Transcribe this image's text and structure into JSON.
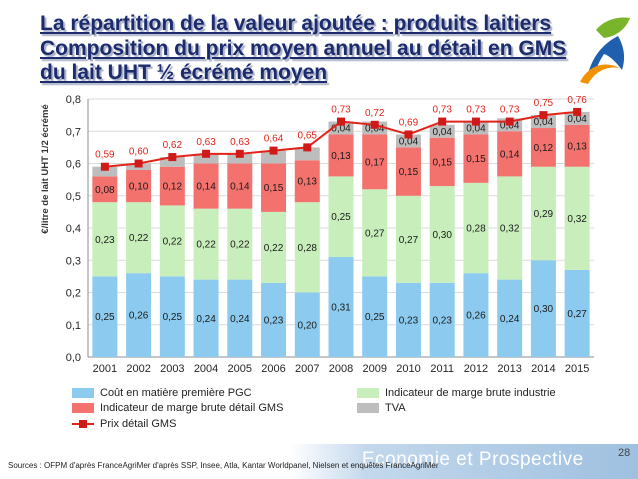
{
  "slide": {
    "title_lines": [
      "La répartition de la valeur ajoutée : produits laitiers",
      "Composition du prix moyen annuel au détail en GMS",
      "du lait UHT ½ écrémé moyen"
    ],
    "title_color": "#1b2b6d",
    "logo": {
      "icon": "logo-icon"
    },
    "sources": "Sources : OFPM d'après FranceAgriMer d'après SSP, Insee, Atla, Kantar Worldpanel, Nielsen et enquêtes FranceAgriMer",
    "footer_brand": "Economie et Prospective",
    "page_number": "28"
  },
  "chart_data": {
    "type": "bar",
    "stacked": true,
    "categories": [
      "2001",
      "2002",
      "2003",
      "2004",
      "2005",
      "2006",
      "2007",
      "2008",
      "2009",
      "2010",
      "2011",
      "2012",
      "2013",
      "2014",
      "2015"
    ],
    "ylabel": "€/litre de lait UHT 1/2 écrémé",
    "ylim": [
      0,
      0.8
    ],
    "yticks": [
      "0,0",
      "0,1",
      "0,2",
      "0,3",
      "0,4",
      "0,5",
      "0,6",
      "0,7",
      "0,8"
    ],
    "grid": "horizontal",
    "legend": "bottom",
    "series": [
      {
        "name": "Coût en matière première PGC",
        "kind": "bar",
        "color": "#8ccbef",
        "values": [
          0.25,
          0.26,
          0.25,
          0.24,
          0.24,
          0.23,
          0.2,
          0.31,
          0.25,
          0.23,
          0.23,
          0.26,
          0.24,
          0.3,
          0.27
        ],
        "labels": [
          "0,25",
          "0,26",
          "0,25",
          "0,24",
          "0,24",
          "0,23",
          "0,20",
          "0,31",
          "0,25",
          "0,23",
          "0,23",
          "0,26",
          "0,24",
          "0,30",
          "0,27"
        ]
      },
      {
        "name": "Indicateur de marge brute industrie",
        "kind": "bar",
        "color": "#c8efbb",
        "values": [
          0.23,
          0.22,
          0.22,
          0.22,
          0.22,
          0.22,
          0.28,
          0.25,
          0.27,
          0.27,
          0.3,
          0.28,
          0.32,
          0.29,
          0.32
        ],
        "labels": [
          "0,23",
          "0,22",
          "0,22",
          "0,22",
          "0,22",
          "0,22",
          "0,28",
          "0,25",
          "0,27",
          "0,27",
          "0,30",
          "0,28",
          "0,32",
          "0,29",
          "0,32"
        ]
      },
      {
        "name": "Indicateur de marge brute détail GMS",
        "kind": "bar",
        "color": "#f3726e",
        "values": [
          0.08,
          0.1,
          0.12,
          0.14,
          0.14,
          0.15,
          0.13,
          0.13,
          0.17,
          0.15,
          0.15,
          0.15,
          0.14,
          0.12,
          0.13
        ],
        "labels": [
          "0,08",
          "0,10",
          "0,12",
          "0,14",
          "0,14",
          "0,15",
          "0,13",
          "0,13",
          "0,17",
          "0,15",
          "0,15",
          "0,15",
          "0,14",
          "0,12",
          "0,13"
        ]
      },
      {
        "name": "TVA",
        "kind": "bar",
        "color": "#bdbdbd",
        "values": [
          0.03,
          0.02,
          0.03,
          0.03,
          0.03,
          0.04,
          0.04,
          0.04,
          0.04,
          0.04,
          0.04,
          0.04,
          0.04,
          0.04,
          0.04
        ],
        "labels": [
          null,
          null,
          null,
          null,
          null,
          null,
          null,
          "0,04",
          "0,04",
          "0,04",
          "0,04",
          "0,04",
          "0,04",
          "0,04",
          "0,04"
        ]
      },
      {
        "name": "Prix détail GMS",
        "kind": "line",
        "color": "#e2231a",
        "marker_color": "#d01a1a",
        "values": [
          0.59,
          0.6,
          0.62,
          0.63,
          0.63,
          0.64,
          0.65,
          0.73,
          0.72,
          0.69,
          0.73,
          0.73,
          0.73,
          0.75,
          0.76
        ],
        "labels": [
          "0,59",
          "0,60",
          "0,62",
          "0,63",
          "0,63",
          "0,64",
          "0,65",
          "0,73",
          "0,72",
          "0,69",
          "0,73",
          "0,73",
          "0,73",
          "0,75",
          "0,76"
        ]
      }
    ]
  }
}
